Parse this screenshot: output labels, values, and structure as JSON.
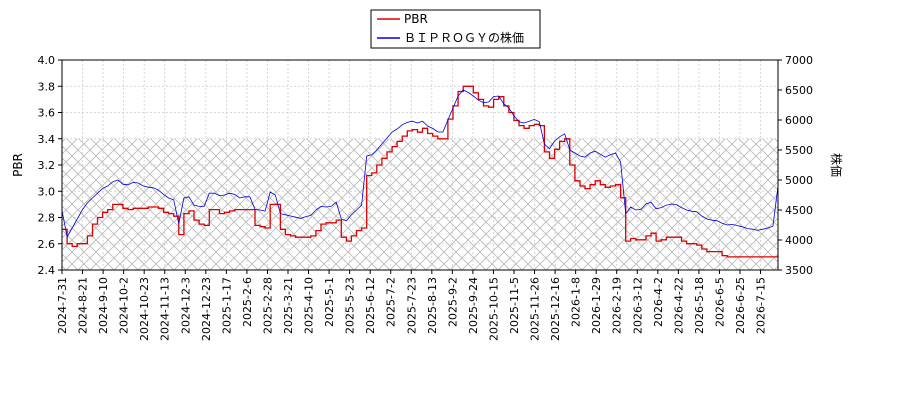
{
  "chart_data": {
    "type": "line",
    "legend_position": "top-center",
    "grid": true,
    "y_left": {
      "label": "PBR",
      "ticks": [
        "2.4",
        "2.6",
        "2.8",
        "3.0",
        "3.2",
        "3.4",
        "3.6",
        "3.8",
        "4.0"
      ],
      "range": [
        2.4,
        4.0
      ]
    },
    "y_right": {
      "label": "株価",
      "ticks": [
        "3500",
        "4000",
        "4500",
        "5000",
        "5500",
        "6000",
        "6500",
        "7000"
      ],
      "range": [
        3500,
        7000
      ]
    },
    "x_ticks": [
      "2024-7-31",
      "2024-8-21",
      "2024-9-10",
      "2024-10-2",
      "2024-10-23",
      "2024-11-13",
      "2024-12-3",
      "2024-12-23",
      "2025-1-17",
      "2025-2-6",
      "2025-2-28",
      "2025-3-21",
      "2025-4-10",
      "2025-5-1",
      "2025-5-23",
      "2025-6-12",
      "2025-7-2",
      "2025-7-23",
      "2025-8-13",
      "2025-9-2",
      "2025-9-24",
      "2025-10-15",
      "2025-11-5",
      "2025-11-26",
      "2025-12-16",
      "2026-1-8",
      "2026-1-29",
      "2026-2-19",
      "2026-3-12",
      "2026-4-2",
      "2026-4-22",
      "2026-5-18",
      "2026-6-5",
      "2026-6-25",
      "2026-7-15"
    ],
    "shaded_band": {
      "axis": "left",
      "from": 2.4,
      "to": 3.4,
      "pattern": "crosshatch"
    },
    "series": [
      {
        "name": "PBR",
        "axis": "left",
        "color": "#dd0000",
        "values": [
          2.71,
          2.6,
          2.58,
          2.6,
          2.6,
          2.66,
          2.75,
          2.8,
          2.84,
          2.86,
          2.9,
          2.9,
          2.87,
          2.86,
          2.87,
          2.87,
          2.87,
          2.88,
          2.88,
          2.87,
          2.84,
          2.83,
          2.81,
          2.67,
          2.83,
          2.85,
          2.78,
          2.75,
          2.74,
          2.86,
          2.86,
          2.83,
          2.84,
          2.85,
          2.86,
          2.86,
          2.86,
          2.86,
          2.74,
          2.73,
          2.72,
          2.9,
          2.9,
          2.71,
          2.67,
          2.66,
          2.65,
          2.65,
          2.65,
          2.66,
          2.7,
          2.75,
          2.76,
          2.76,
          2.78,
          2.65,
          2.62,
          2.66,
          2.7,
          2.72,
          3.12,
          3.14,
          3.2,
          3.25,
          3.3,
          3.34,
          3.38,
          3.42,
          3.46,
          3.47,
          3.45,
          3.48,
          3.44,
          3.42,
          3.4,
          3.4,
          3.55,
          3.65,
          3.76,
          3.8,
          3.8,
          3.75,
          3.7,
          3.65,
          3.64,
          3.7,
          3.72,
          3.65,
          3.6,
          3.54,
          3.5,
          3.48,
          3.5,
          3.51,
          3.5,
          3.3,
          3.25,
          3.32,
          3.38,
          3.4,
          3.2,
          3.08,
          3.04,
          3.02,
          3.05,
          3.08,
          3.05,
          3.03,
          3.04,
          3.05,
          2.95,
          2.62,
          2.64,
          2.63,
          2.63,
          2.66,
          2.68,
          2.62,
          2.63,
          2.65,
          2.65,
          2.65,
          2.62,
          2.6,
          2.6,
          2.59,
          2.56,
          2.54,
          2.54,
          2.54,
          2.51,
          2.5,
          2.5,
          2.5,
          2.5,
          2.5,
          2.5,
          2.5,
          2.5,
          2.5,
          2.5,
          2.51
        ]
      },
      {
        "name": "ＢＩＰＲＯＧＹの株価",
        "axis": "right",
        "color": "#0000dd",
        "values": [
          4490,
          4050,
          4200,
          4350,
          4500,
          4620,
          4700,
          4780,
          4860,
          4900,
          4970,
          5000,
          4930,
          4920,
          4960,
          4950,
          4900,
          4880,
          4870,
          4830,
          4760,
          4700,
          4670,
          4270,
          4700,
          4720,
          4580,
          4560,
          4560,
          4780,
          4780,
          4740,
          4750,
          4780,
          4760,
          4700,
          4720,
          4720,
          4510,
          4500,
          4480,
          4800,
          4750,
          4440,
          4420,
          4400,
          4380,
          4360,
          4390,
          4410,
          4500,
          4560,
          4550,
          4560,
          4630,
          4350,
          4320,
          4420,
          4500,
          4580,
          5400,
          5420,
          5500,
          5600,
          5700,
          5800,
          5850,
          5920,
          5960,
          5980,
          5950,
          5980,
          5900,
          5860,
          5800,
          5800,
          6000,
          6200,
          6400,
          6500,
          6460,
          6400,
          6330,
          6290,
          6300,
          6390,
          6400,
          6270,
          6200,
          6070,
          5970,
          5950,
          5980,
          6010,
          5970,
          5600,
          5520,
          5650,
          5720,
          5770,
          5500,
          5450,
          5400,
          5380,
          5450,
          5480,
          5430,
          5380,
          5420,
          5450,
          5300,
          4440,
          4550,
          4500,
          4510,
          4600,
          4630,
          4520,
          4540,
          4580,
          4600,
          4590,
          4540,
          4500,
          4480,
          4470,
          4400,
          4350,
          4330,
          4320,
          4280,
          4250,
          4260,
          4240,
          4220,
          4190,
          4180,
          4160,
          4180,
          4200,
          4230,
          4900
        ]
      }
    ]
  }
}
